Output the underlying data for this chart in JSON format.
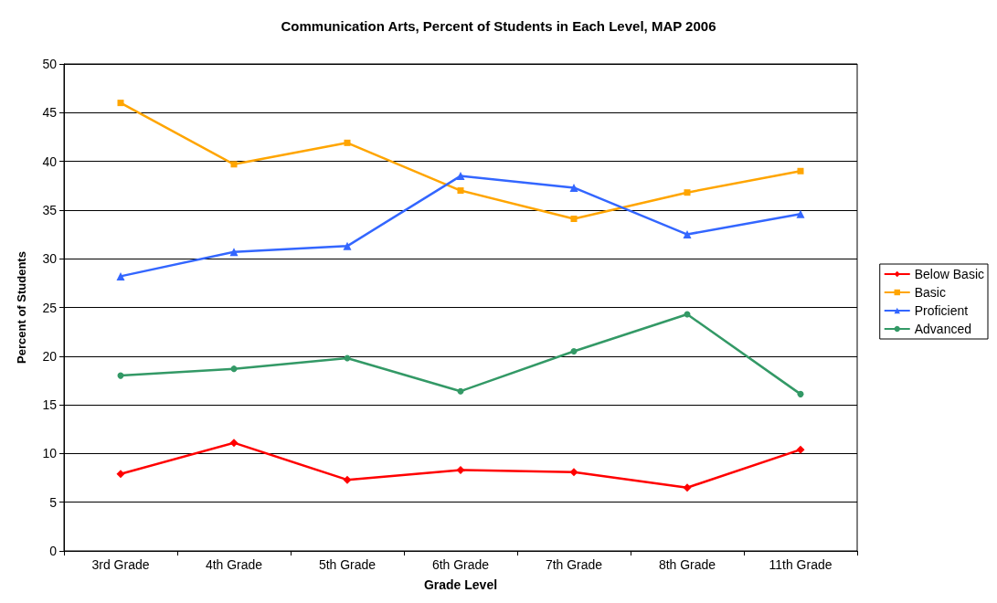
{
  "chart_data": {
    "type": "line",
    "title": "Communication Arts, Percent of Students in Each Level, MAP 2006",
    "xlabel": "Grade Level",
    "ylabel": "Percent of Students",
    "categories": [
      "3rd Grade",
      "4th Grade",
      "5th Grade",
      "6th Grade",
      "7th Grade",
      "8th Grade",
      "11th Grade"
    ],
    "series": [
      {
        "name": "Below Basic",
        "color": "#ff0000",
        "marker": "diamond",
        "values": [
          7.9,
          11.1,
          7.3,
          8.3,
          8.1,
          6.5,
          10.4
        ]
      },
      {
        "name": "Basic",
        "color": "#ffa500",
        "marker": "square",
        "values": [
          46.0,
          39.7,
          41.9,
          37.0,
          34.1,
          36.8,
          39.0
        ]
      },
      {
        "name": "Proficient",
        "color": "#3366ff",
        "marker": "triangle",
        "values": [
          28.2,
          30.7,
          31.3,
          38.5,
          37.3,
          32.5,
          34.6
        ]
      },
      {
        "name": "Advanced",
        "color": "#339966",
        "marker": "circle",
        "values": [
          18.0,
          18.7,
          19.8,
          16.4,
          20.5,
          24.3,
          16.1
        ]
      }
    ],
    "ylim": [
      0,
      50
    ],
    "yticks": [
      0,
      5,
      10,
      15,
      20,
      25,
      30,
      35,
      40,
      45,
      50
    ],
    "grid": "y",
    "legend": "right"
  }
}
